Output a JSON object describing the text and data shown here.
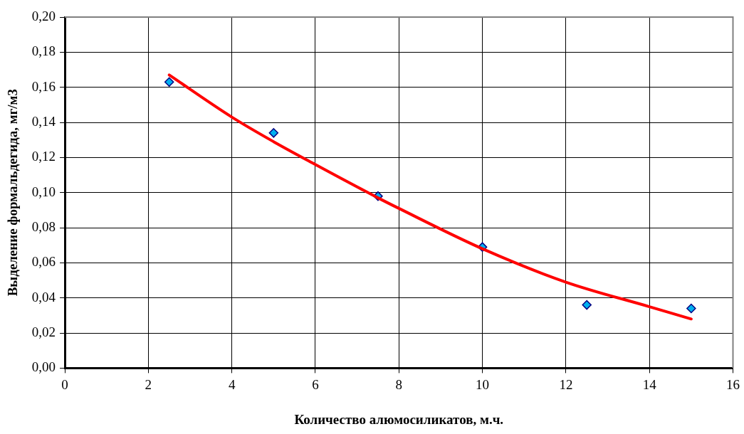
{
  "chart_data": {
    "type": "scatter",
    "xlabel": "Количество алюмосиликатов, м.ч.",
    "ylabel": "Выделение формальдегида, мг/м3",
    "xlim": [
      0,
      16
    ],
    "xticks": [
      0,
      2,
      4,
      6,
      8,
      10,
      12,
      14,
      16
    ],
    "ylim": [
      0,
      0.2
    ],
    "yticks": [
      {
        "value": 0,
        "label": "0,00"
      },
      {
        "value": 0.02,
        "label": "0,02"
      },
      {
        "value": 0.04,
        "label": "0,04"
      },
      {
        "value": 0.06,
        "label": "0,06"
      },
      {
        "value": 0.08,
        "label": "0,08"
      },
      {
        "value": 0.1,
        "label": "0,10"
      },
      {
        "value": 0.12,
        "label": "0,12"
      },
      {
        "value": 0.14,
        "label": "0,14"
      },
      {
        "value": 0.16,
        "label": "0,16"
      },
      {
        "value": 0.18,
        "label": "0,18"
      },
      {
        "value": 0.2,
        "label": "0,20"
      }
    ],
    "grid": true,
    "legend": false,
    "series": [
      {
        "type": "scatter",
        "color": "#00b0f0",
        "marker": "diamond",
        "x": [
          2.5,
          5,
          7.5,
          10,
          12.5,
          15
        ],
        "values": [
          0.163,
          0.134,
          0.098,
          0.069,
          0.036,
          0.034
        ]
      },
      {
        "type": "line",
        "color": "#ff0000",
        "marker": "none",
        "line_style": "solid",
        "x": [
          2.5,
          4,
          5,
          6,
          7.5,
          8,
          10,
          12,
          14,
          15
        ],
        "values": [
          0.167,
          0.143,
          0.129,
          0.116,
          0.097,
          0.091,
          0.068,
          0.049,
          0.035,
          0.028
        ]
      }
    ]
  }
}
